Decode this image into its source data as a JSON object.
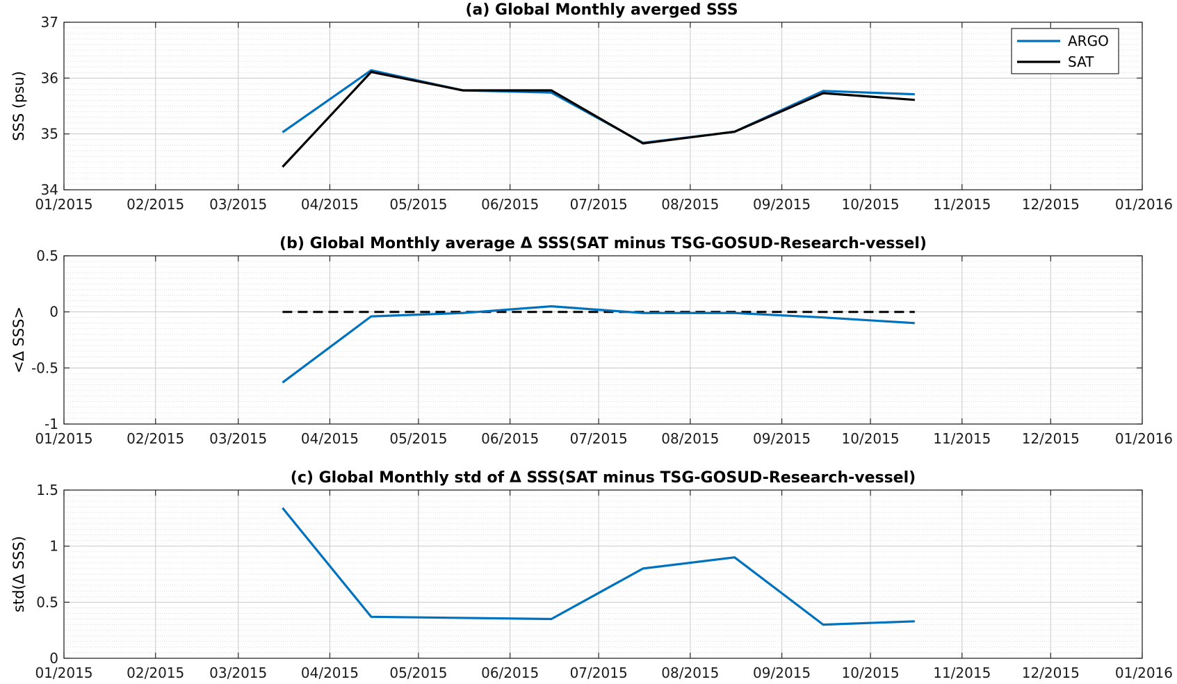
{
  "chart_data": [
    {
      "type": "line",
      "title": "(a) Global Monthly averged SSS",
      "ylabel": "SSS (psu)",
      "xlabel": "",
      "x_ticks": [
        "01/2015",
        "02/2015",
        "03/2015",
        "04/2015",
        "05/2015",
        "06/2015",
        "07/2015",
        "08/2015",
        "09/2015",
        "10/2015",
        "11/2015",
        "12/2015",
        "01/2016"
      ],
      "xlim": [
        "2015-01-01",
        "2016-01-01"
      ],
      "y_ticks": [
        "34",
        "35",
        "36",
        "37"
      ],
      "ylim": [
        34,
        37
      ],
      "grid": true,
      "legend_position": "top-right",
      "x": [
        "2015-03-16",
        "2015-04-15",
        "2015-05-16",
        "2015-06-15",
        "2015-07-16",
        "2015-08-16",
        "2015-09-15",
        "2015-10-16"
      ],
      "series": [
        {
          "name": "ARGO",
          "color": "#0072BD",
          "values": [
            35.03,
            36.14,
            35.78,
            35.74,
            34.84,
            35.04,
            35.77,
            35.71
          ]
        },
        {
          "name": "SAT",
          "color": "#000000",
          "values": [
            34.41,
            36.11,
            35.78,
            35.78,
            34.83,
            35.04,
            35.73,
            35.61
          ]
        }
      ]
    },
    {
      "type": "line",
      "title": "(b) Global Monthly average Δ SSS(SAT minus TSG-GOSUD-Research-vessel)",
      "ylabel": "<Δ SSS>",
      "xlabel": "",
      "x_ticks": [
        "01/2015",
        "02/2015",
        "03/2015",
        "04/2015",
        "05/2015",
        "06/2015",
        "07/2015",
        "08/2015",
        "09/2015",
        "10/2015",
        "11/2015",
        "12/2015",
        "01/2016"
      ],
      "xlim": [
        "2015-01-01",
        "2016-01-01"
      ],
      "y_ticks": [
        "-1",
        "-0.5",
        "0",
        "0.5"
      ],
      "ylim": [
        -1,
        0.5
      ],
      "grid": true,
      "x": [
        "2015-03-16",
        "2015-04-15",
        "2015-05-16",
        "2015-06-15",
        "2015-07-16",
        "2015-08-16",
        "2015-09-15",
        "2015-10-16"
      ],
      "series": [
        {
          "color": "#0072BD",
          "values": [
            -0.63,
            -0.04,
            -0.01,
            0.05,
            -0.01,
            -0.01,
            -0.05,
            -0.1
          ]
        },
        {
          "color": "#000000",
          "style": "dashed",
          "values": [
            0,
            0,
            0,
            0,
            0,
            0,
            0,
            0
          ]
        }
      ]
    },
    {
      "type": "line",
      "title": "(c) Global Monthly std of Δ SSS(SAT minus TSG-GOSUD-Research-vessel)",
      "ylabel": "std(Δ SSS)",
      "xlabel": "",
      "x_ticks": [
        "01/2015",
        "02/2015",
        "03/2015",
        "04/2015",
        "05/2015",
        "06/2015",
        "07/2015",
        "08/2015",
        "09/2015",
        "10/2015",
        "11/2015",
        "12/2015",
        "01/2016"
      ],
      "xlim": [
        "2015-01-01",
        "2016-01-01"
      ],
      "y_ticks": [
        "0",
        "0.5",
        "1",
        "1.5"
      ],
      "ylim": [
        0,
        1.5
      ],
      "grid": true,
      "x": [
        "2015-03-16",
        "2015-04-15",
        "2015-06-15",
        "2015-07-16",
        "2015-08-16",
        "2015-09-15",
        "2015-10-16"
      ],
      "series": [
        {
          "color": "#0072BD",
          "values": [
            1.34,
            0.37,
            0.35,
            0.8,
            0.9,
            0.3,
            0.33
          ]
        }
      ]
    }
  ]
}
